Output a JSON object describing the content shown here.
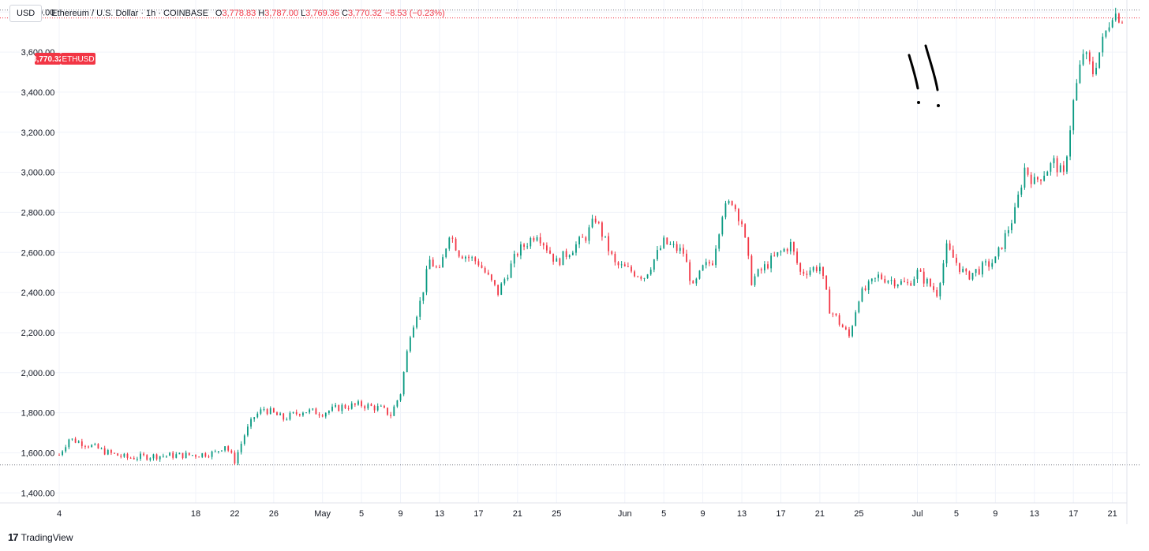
{
  "header": {
    "currency_button": "USD",
    "title": "Ethereum / U.S. Dollar · 1h · COINBASE",
    "o_key": "O",
    "o_val": "3,778.83",
    "h_key": "H",
    "h_val": "3,787.00",
    "l_key": "L",
    "l_val": "3,769.36",
    "c_key": "C",
    "c_val": "3,770.32",
    "change": "−8.53 (−0.23%)"
  },
  "price_tag": {
    "value": "3,770.32",
    "symbol": "ETHUSD",
    "color": "#f23645"
  },
  "footer": {
    "brand": "TradingView",
    "logo_icon": "tradingview-logo-icon"
  },
  "colors": {
    "up": "#089981",
    "down": "#f23645",
    "grid": "#f0f3fa",
    "line": "#f23645"
  },
  "chart_data": {
    "type": "candlestick",
    "timeframe": "1h",
    "ylim": [
      1350,
      3860
    ],
    "yticks": [
      1400,
      1600,
      1800,
      2000,
      2200,
      2400,
      2600,
      2800,
      3000,
      3200,
      3400,
      3600,
      3800
    ],
    "ytick_labels": [
      "1,400.00",
      "1,600.00",
      "1,800.00",
      "2,000.00",
      "2,200.00",
      "2,400.00",
      "2,600.00",
      "2,800.00",
      "3,000.00",
      "3,200.00",
      "3,400.00",
      "3,600.00",
      "3,800.00"
    ],
    "xlim": [
      "2024-04-04",
      "2024-07-22"
    ],
    "xticks": [
      {
        "date": "2024-04-04",
        "label": "4"
      },
      {
        "date": "2024-04-18",
        "label": "18"
      },
      {
        "date": "2024-04-22",
        "label": "22"
      },
      {
        "date": "2024-04-26",
        "label": "26"
      },
      {
        "date": "2024-05-01",
        "label": "May"
      },
      {
        "date": "2024-05-05",
        "label": "5"
      },
      {
        "date": "2024-05-09",
        "label": "9"
      },
      {
        "date": "2024-05-13",
        "label": "13"
      },
      {
        "date": "2024-05-17",
        "label": "17"
      },
      {
        "date": "2024-05-21",
        "label": "21"
      },
      {
        "date": "2024-05-25",
        "label": "25"
      },
      {
        "date": "2024-06-01",
        "label": "Jun"
      },
      {
        "date": "2024-06-05",
        "label": "5"
      },
      {
        "date": "2024-06-09",
        "label": "9"
      },
      {
        "date": "2024-06-13",
        "label": "13"
      },
      {
        "date": "2024-06-17",
        "label": "17"
      },
      {
        "date": "2024-06-21",
        "label": "21"
      },
      {
        "date": "2024-06-25",
        "label": "25"
      },
      {
        "date": "2024-07-01",
        "label": "Jul"
      },
      {
        "date": "2024-07-05",
        "label": "5"
      },
      {
        "date": "2024-07-09",
        "label": "9"
      },
      {
        "date": "2024-07-13",
        "label": "13"
      },
      {
        "date": "2024-07-17",
        "label": "17"
      },
      {
        "date": "2024-07-21",
        "label": "21"
      }
    ],
    "reference_lines": [
      3810,
      3770.32,
      1540
    ],
    "close_path": [
      [
        "2024-04-04",
        1590
      ],
      [
        "2024-04-05",
        1670
      ],
      [
        "2024-04-07",
        1640
      ],
      [
        "2024-04-09",
        1600
      ],
      [
        "2024-04-11",
        1575
      ],
      [
        "2024-04-14",
        1585
      ],
      [
        "2024-04-18",
        1590
      ],
      [
        "2024-04-20",
        1600
      ],
      [
        "2024-04-21",
        1640
      ],
      [
        "2024-04-22",
        1560
      ],
      [
        "2024-04-23",
        1690
      ],
      [
        "2024-04-24",
        1780
      ],
      [
        "2024-04-25",
        1820
      ],
      [
        "2024-04-27",
        1770
      ],
      [
        "2024-04-29",
        1810
      ],
      [
        "2024-05-01",
        1800
      ],
      [
        "2024-05-03",
        1830
      ],
      [
        "2024-05-05",
        1840
      ],
      [
        "2024-05-07",
        1820
      ],
      [
        "2024-05-08",
        1790
      ],
      [
        "2024-05-09",
        1900
      ],
      [
        "2024-05-10",
        2200
      ],
      [
        "2024-05-11",
        2350
      ],
      [
        "2024-05-12",
        2560
      ],
      [
        "2024-05-13",
        2500
      ],
      [
        "2024-05-14",
        2700
      ],
      [
        "2024-05-15",
        2600
      ],
      [
        "2024-05-17",
        2550
      ],
      [
        "2024-05-19",
        2400
      ],
      [
        "2024-05-21",
        2600
      ],
      [
        "2024-05-23",
        2700
      ],
      [
        "2024-05-25",
        2550
      ],
      [
        "2024-05-28",
        2680
      ],
      [
        "2024-05-29",
        2770
      ],
      [
        "2024-05-31",
        2540
      ],
      [
        "2024-06-03",
        2480
      ],
      [
        "2024-06-05",
        2650
      ],
      [
        "2024-06-07",
        2600
      ],
      [
        "2024-06-08",
        2420
      ],
      [
        "2024-06-09",
        2520
      ],
      [
        "2024-06-10",
        2560
      ],
      [
        "2024-06-11",
        2800
      ],
      [
        "2024-06-12",
        2860
      ],
      [
        "2024-06-13",
        2750
      ],
      [
        "2024-06-14",
        2460
      ],
      [
        "2024-06-16",
        2560
      ],
      [
        "2024-06-18",
        2640
      ],
      [
        "2024-06-19",
        2500
      ],
      [
        "2024-06-21",
        2530
      ],
      [
        "2024-06-22",
        2320
      ],
      [
        "2024-06-24",
        2180
      ],
      [
        "2024-06-25",
        2380
      ],
      [
        "2024-06-27",
        2480
      ],
      [
        "2024-06-30",
        2440
      ],
      [
        "2024-07-01",
        2500
      ],
      [
        "2024-07-03",
        2400
      ],
      [
        "2024-07-04",
        2620
      ],
      [
        "2024-07-06",
        2480
      ],
      [
        "2024-07-09",
        2560
      ],
      [
        "2024-07-11",
        2800
      ],
      [
        "2024-07-12",
        3020
      ],
      [
        "2024-07-13",
        2950
      ],
      [
        "2024-07-15",
        3050
      ],
      [
        "2024-07-16",
        2980
      ],
      [
        "2024-07-17",
        3350
      ],
      [
        "2024-07-18",
        3600
      ],
      [
        "2024-07-19",
        3500
      ],
      [
        "2024-07-20",
        3650
      ],
      [
        "2024-07-21",
        3800
      ],
      [
        "2024-07-22",
        3770
      ]
    ]
  }
}
